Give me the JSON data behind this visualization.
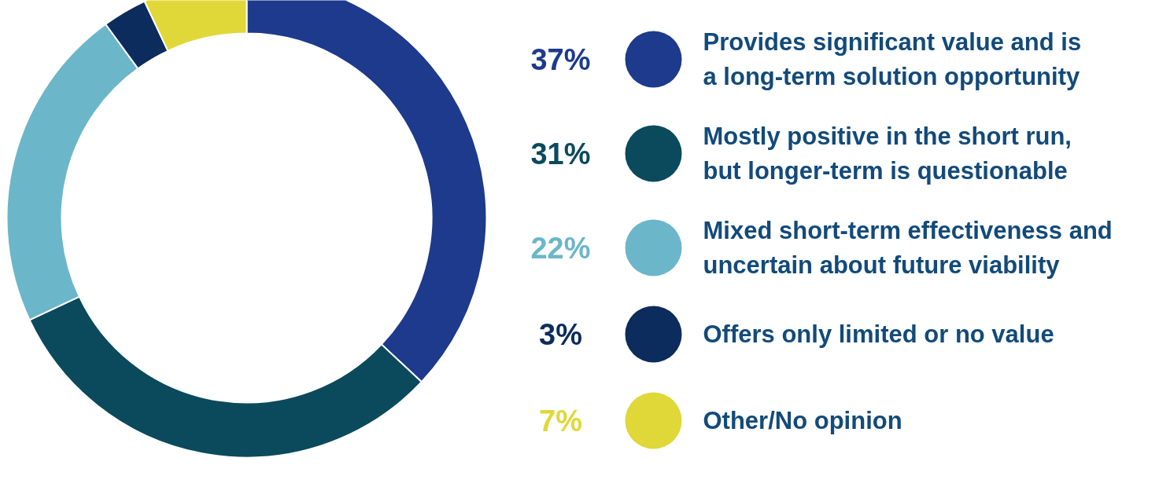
{
  "chart_data": {
    "type": "donut",
    "categories": [
      "Provides significant value and is a long-term solution opportunity",
      "Mostly positive in the short run, but longer-term is questionable",
      "Mixed short-term effectiveness and uncertain about future viability",
      "Offers only limited or no value",
      "Other/No opinion"
    ],
    "values": [
      37,
      31,
      22,
      3,
      7
    ],
    "colors": [
      "#1d3a8c",
      "#0a4a5c",
      "#6cb6ca",
      "#0c2c5e",
      "#e0d838"
    ],
    "value_labels": [
      "37%",
      "31%",
      "22%",
      "3%",
      "7%"
    ],
    "legend": "right"
  }
}
